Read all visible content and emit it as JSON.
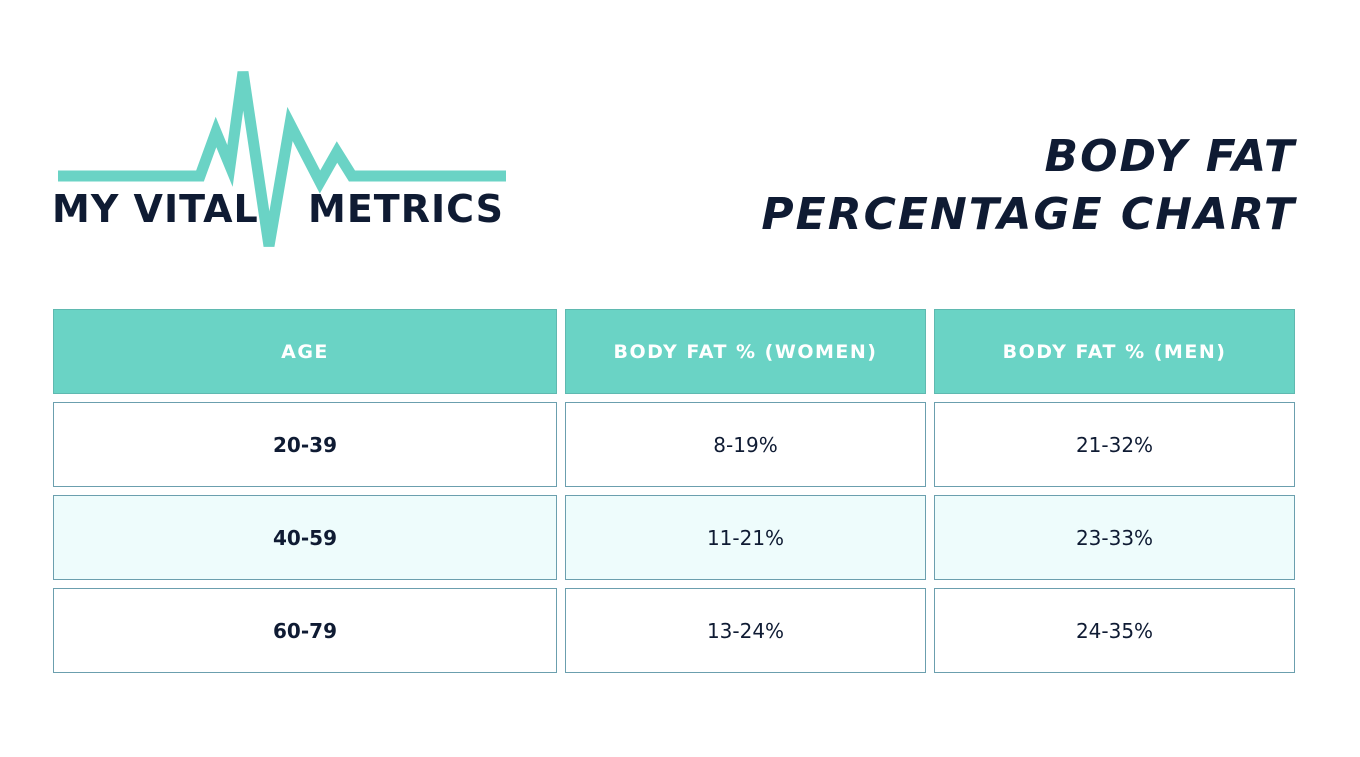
{
  "logo": {
    "text_left": "MY VITAL",
    "text_right": "METRICS",
    "accent_color": "#6ad3c5",
    "icon": "heartbeat-line"
  },
  "title": {
    "line1": "BODY FAT",
    "line2": "PERCENTAGE CHART"
  },
  "colors": {
    "header_bg": "#6ad3c5",
    "header_text": "#ffffff",
    "shaded_row_bg": "#eefcfc",
    "border": "#6b9fae",
    "text": "#0f1b33"
  },
  "chart_data": {
    "type": "table",
    "title": "BODY FAT PERCENTAGE CHART",
    "columns": [
      "AGE",
      "BODY FAT % (WOMEN)",
      "BODY FAT % (MEN)"
    ],
    "rows": [
      [
        "20-39",
        "8-19%",
        "21-32%"
      ],
      [
        "40-59",
        "11-21%",
        "23-33%"
      ],
      [
        "60-79",
        "13-24%",
        "24-35%"
      ]
    ]
  }
}
